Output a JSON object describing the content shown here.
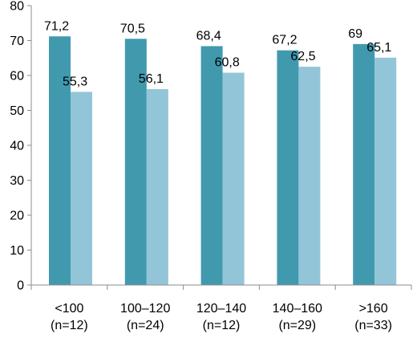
{
  "chart_data": {
    "type": "bar",
    "categories": [
      [
        "<100",
        "(n=12)"
      ],
      [
        "100–120",
        "(n=24)"
      ],
      [
        "120–140",
        "(n=12)"
      ],
      [
        "140–160",
        "(n=29)"
      ],
      [
        ">160",
        "(n=33)"
      ]
    ],
    "series": [
      {
        "values": [
          71.2,
          70.5,
          68.4,
          67.2,
          69
        ],
        "labels": [
          "71,2",
          "70,5",
          "68,4",
          "67,2",
          "69"
        ],
        "color": "#4199AE"
      },
      {
        "values": [
          55.3,
          56.1,
          60.8,
          62.5,
          65.1
        ],
        "labels": [
          "55,3",
          "56,1",
          "60,8",
          "62,5",
          "65,1"
        ],
        "color": "#93C5D8"
      }
    ],
    "y_ticks": [
      "0",
      "10",
      "20",
      "30",
      "40",
      "50",
      "60",
      "70",
      "80"
    ],
    "ylim": [
      0,
      80
    ],
    "grid": false,
    "axis_color": "#8C8C8C"
  }
}
